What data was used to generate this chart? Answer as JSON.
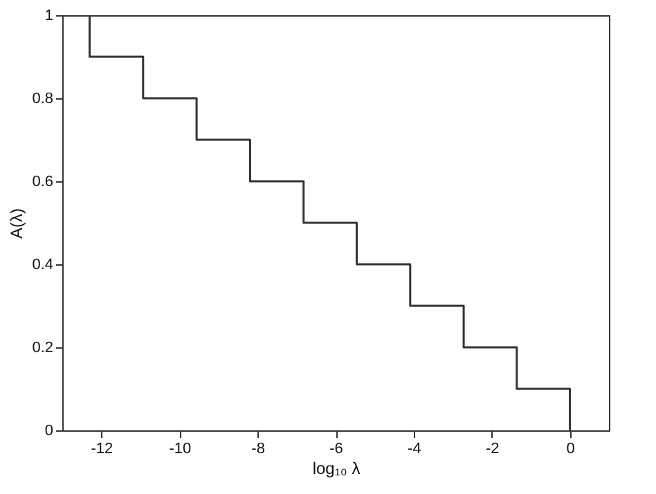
{
  "chart_data": {
    "type": "step",
    "x": [
      -13,
      -12.3,
      -10.93,
      -9.56,
      -8.19,
      -6.82,
      -5.46,
      -4.09,
      -2.72,
      -1.36,
      0
    ],
    "series": [
      {
        "color": "#333333",
        "values": [
          1,
          0.9,
          0.8,
          0.7,
          0.6,
          0.5,
          0.4,
          0.3,
          0.2,
          0.1,
          0
        ]
      }
    ],
    "xlim": [
      -13,
      1
    ],
    "xticks": [
      -12,
      -10,
      -8,
      -6,
      -4,
      -2,
      0
    ],
    "ylim": [
      0,
      1
    ],
    "yticks": [
      0,
      0.2,
      0.4,
      0.6,
      0.8,
      1
    ],
    "xlabel": "log₁₀ λ",
    "ylabel": "A(λ)",
    "grid": false,
    "legend": false,
    "marker": "none",
    "line_style": "solid"
  }
}
